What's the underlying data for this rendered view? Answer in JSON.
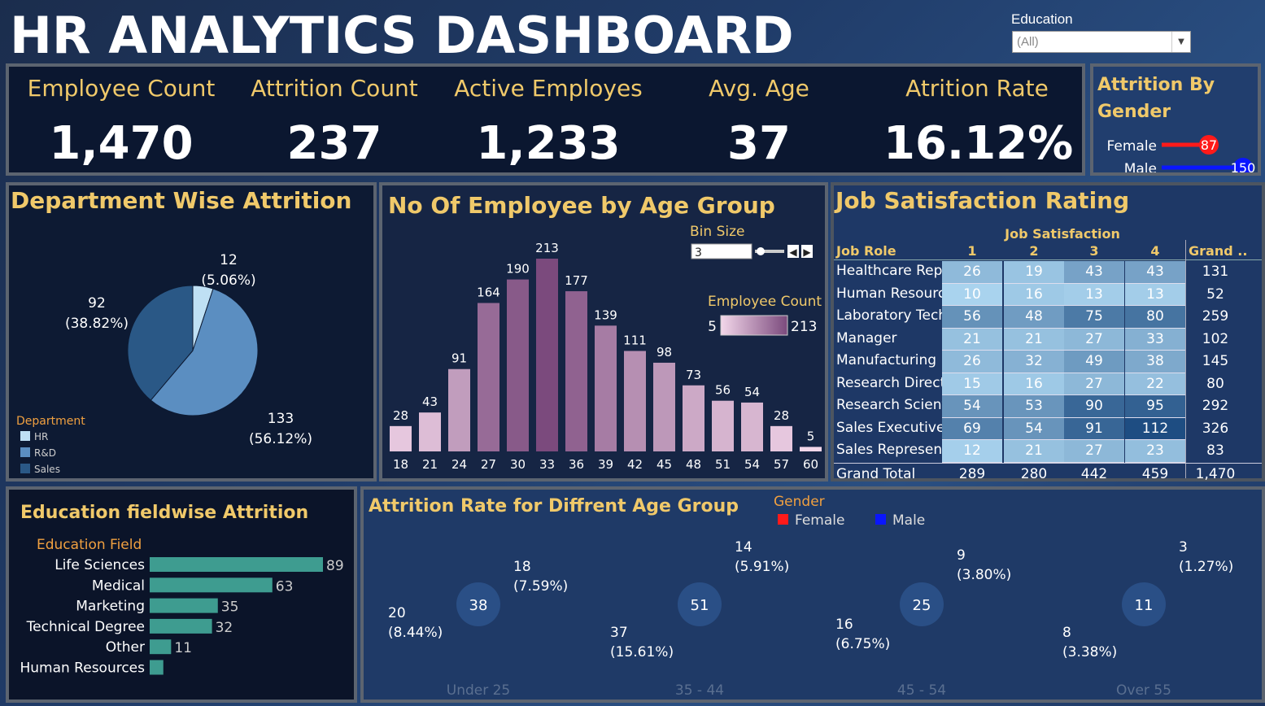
{
  "header": {
    "title": "HR ANALYTICS DASHBOARD"
  },
  "filter": {
    "label": "Education",
    "value": "(All)"
  },
  "kpis": [
    {
      "label": "Employee Count",
      "value": "1,470"
    },
    {
      "label": "Attrition Count",
      "value": "237"
    },
    {
      "label": "Active Employes",
      "value": "1,233"
    },
    {
      "label": "Avg. Age",
      "value": "37"
    },
    {
      "label": "Atrition Rate",
      "value": "16.12%"
    }
  ],
  "gender_panel": {
    "title_line1": "Attrition By",
    "title_line2": "Gender",
    "rows": [
      {
        "label": "Female",
        "value": 87,
        "color": "#ff1a1a"
      },
      {
        "label": "Male",
        "value": 150,
        "color": "#0a16ff"
      }
    ]
  },
  "dept_panel": {
    "title": "Department Wise Attrition",
    "legend_title": "Department",
    "slice_labels": [
      {
        "value": "12",
        "pct": "(5.06%)"
      },
      {
        "value": "133",
        "pct": "(56.12%)"
      },
      {
        "value": "92",
        "pct": "(38.82%)"
      }
    ],
    "legend": [
      "HR",
      "R&D",
      "Sales"
    ]
  },
  "age_panel": {
    "title": "No Of Employee by Age Group",
    "bin_label": "Bin Size",
    "bin_value": "3",
    "legend_title": "Employee Count",
    "legend_min": "5",
    "legend_max": "213"
  },
  "jobsat_panel": {
    "title": "Job Satisfaction Rating",
    "col_group": "Job Satisfaction",
    "row_header": "Job Role",
    "grand_header": "Grand ..",
    "columns": [
      "1",
      "2",
      "3",
      "4"
    ],
    "rows": [
      {
        "role": "Healthcare Repr..",
        "vals": [
          "26",
          "19",
          "43",
          "43"
        ],
        "total": "131"
      },
      {
        "role": "Human Resources",
        "vals": [
          "10",
          "16",
          "13",
          "13"
        ],
        "total": "52"
      },
      {
        "role": "Laboratory Tech..",
        "vals": [
          "56",
          "48",
          "75",
          "80"
        ],
        "total": "259"
      },
      {
        "role": "Manager",
        "vals": [
          "21",
          "21",
          "27",
          "33"
        ],
        "total": "102"
      },
      {
        "role": "Manufacturing D..",
        "vals": [
          "26",
          "32",
          "49",
          "38"
        ],
        "total": "145"
      },
      {
        "role": "Research Director",
        "vals": [
          "15",
          "16",
          "27",
          "22"
        ],
        "total": "80"
      },
      {
        "role": "Research Scienti..",
        "vals": [
          "54",
          "53",
          "90",
          "95"
        ],
        "total": "292"
      },
      {
        "role": "Sales Executive",
        "vals": [
          "69",
          "54",
          "91",
          "112"
        ],
        "total": "326"
      },
      {
        "role": "Sales Represent..",
        "vals": [
          "12",
          "21",
          "27",
          "23"
        ],
        "total": "83"
      }
    ],
    "grand_total": {
      "label": "Grand Total",
      "vals": [
        "289",
        "280",
        "442",
        "459"
      ],
      "total": "1,470"
    }
  },
  "edu_panel": {
    "title": "Education fieldwise Attrition",
    "axis_title": "Education Field"
  },
  "attr_panel": {
    "title": "Attrition Rate for Diffrent Age Group",
    "legend_title": "Gender",
    "legend": [
      {
        "label": "Female",
        "color": "#ff1a1a"
      },
      {
        "label": "Male",
        "color": "#0a16ff"
      }
    ]
  },
  "chart_data": [
    {
      "type": "pie",
      "title": "Department Wise Attrition",
      "categories": [
        "HR",
        "R&D",
        "Sales"
      ],
      "values": [
        12,
        133,
        92
      ],
      "labels": [
        "12 (5.06%)",
        "133 (56.12%)",
        "92 (38.82%)"
      ],
      "colors": [
        "#bfe0f4",
        "#5b8ec1",
        "#2a5886"
      ],
      "legend_position": "bottom-left"
    },
    {
      "type": "bar",
      "title": "No Of Employee by Age Group",
      "categories": [
        "18",
        "21",
        "24",
        "27",
        "30",
        "33",
        "36",
        "39",
        "42",
        "45",
        "48",
        "51",
        "54",
        "57",
        "60"
      ],
      "values": [
        28,
        43,
        91,
        164,
        190,
        213,
        177,
        139,
        111,
        98,
        73,
        56,
        54,
        28,
        5
      ],
      "ylim": [
        0,
        213
      ],
      "color_scale": [
        "#f3d7ea",
        "#7b4a7d"
      ]
    },
    {
      "type": "table",
      "title": "Job Satisfaction Rating",
      "columns": [
        "1",
        "2",
        "3",
        "4"
      ],
      "rows": [
        "Healthcare Repr..",
        "Human Resources",
        "Laboratory Tech..",
        "Manager",
        "Manufacturing D..",
        "Research Director",
        "Research Scienti..",
        "Sales Executive",
        "Sales Represent.."
      ],
      "values": [
        [
          26,
          19,
          43,
          43
        ],
        [
          10,
          16,
          13,
          13
        ],
        [
          56,
          48,
          75,
          80
        ],
        [
          21,
          21,
          27,
          33
        ],
        [
          26,
          32,
          49,
          38
        ],
        [
          15,
          16,
          27,
          22
        ],
        [
          54,
          53,
          90,
          95
        ],
        [
          69,
          54,
          91,
          112
        ],
        [
          12,
          21,
          27,
          23
        ]
      ],
      "totals": [
        131,
        52,
        259,
        102,
        145,
        80,
        292,
        326,
        83
      ],
      "grand_total": [
        289,
        280,
        442,
        459,
        1470
      ]
    },
    {
      "type": "bar",
      "title": "Education fieldwise Attrition",
      "orientation": "horizontal",
      "categories": [
        "Life Sciences",
        "Medical",
        "Marketing",
        "Technical Degree",
        "Other",
        "Human Resources"
      ],
      "values": [
        89,
        63,
        35,
        32,
        11,
        7
      ],
      "labels": [
        "89",
        "63",
        "35",
        "32",
        "11",
        ""
      ],
      "color": "#3e9c90"
    },
    {
      "type": "pie",
      "title": "Attrition Rate for Diffrent Age Group",
      "variant": "donut",
      "series": [
        {
          "name": "Under 25",
          "total": 38,
          "female": 18,
          "female_label": "(7.59%)",
          "male": 20,
          "male_label": "(8.44%)"
        },
        {
          "name": "35 - 44",
          "total": 51,
          "female": 14,
          "female_label": "(5.91%)",
          "male": 37,
          "male_label": "(15.61%)"
        },
        {
          "name": "45 - 54",
          "total": 25,
          "female": 9,
          "female_label": "(3.80%)",
          "male": 16,
          "male_label": "(6.75%)"
        },
        {
          "name": "Over 55",
          "total": 11,
          "female": 3,
          "female_label": "(1.27%)",
          "male": 8,
          "male_label": "(3.38%)"
        }
      ],
      "colors": {
        "female": "#ff1a1a",
        "male": "#0a16ff"
      }
    }
  ]
}
